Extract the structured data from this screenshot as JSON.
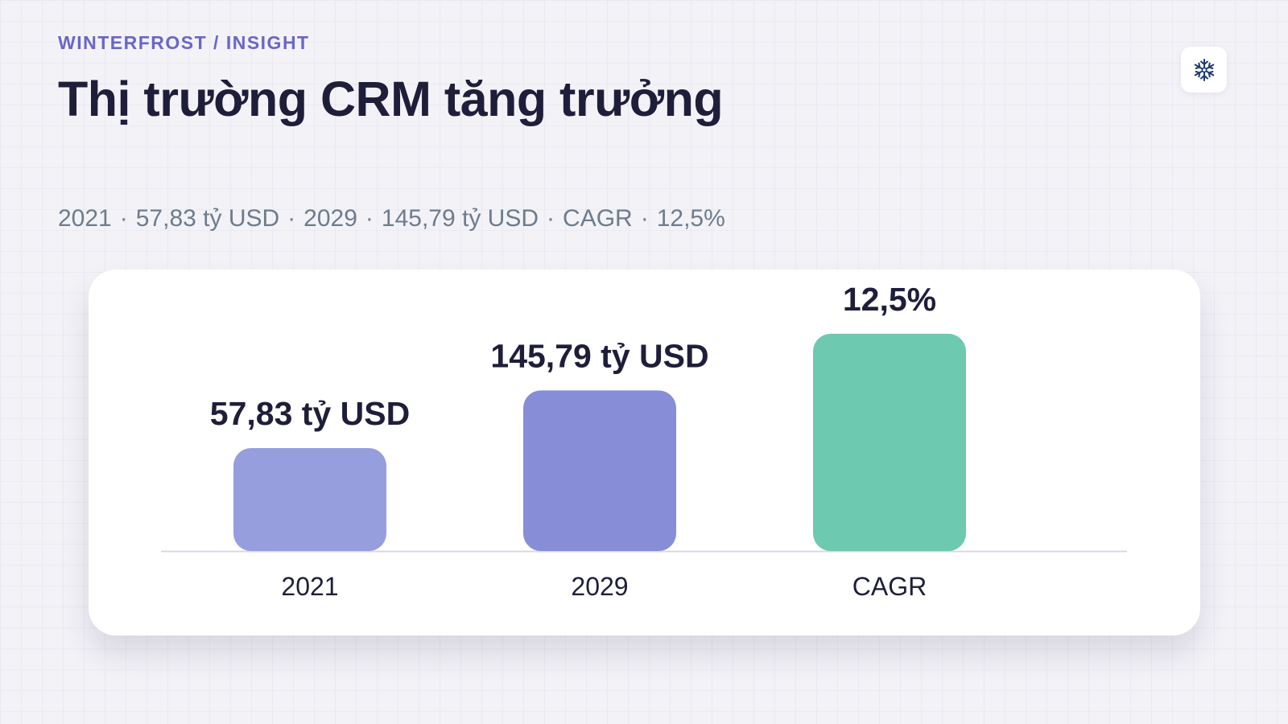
{
  "header": {
    "kicker": "WINTERFROST / INSIGHT",
    "title": "Thị trường CRM tăng trưởng"
  },
  "logo": {
    "icon": "snowflake-icon",
    "color": "#1f3a6b"
  },
  "summary": {
    "items": [
      "2021",
      "57,83 tỷ USD",
      "2029",
      "145,79 tỷ USD",
      "CAGR",
      "12,5%"
    ],
    "separator": "·"
  },
  "chart_data": {
    "type": "bar",
    "categories": [
      "2021",
      "2029",
      "CAGR"
    ],
    "values": [
      57.83,
      145.79,
      12.5
    ],
    "value_labels": [
      "57,83 tỷ USD",
      "145,79 tỷ USD",
      "12,5%"
    ],
    "colors": [
      "#979edd",
      "#878dd6",
      "#6dc9b0"
    ],
    "relative_heights": [
      1,
      1.56,
      2.11
    ],
    "baseline_color": "#d8d8e6",
    "grid": false,
    "legend": "none"
  }
}
